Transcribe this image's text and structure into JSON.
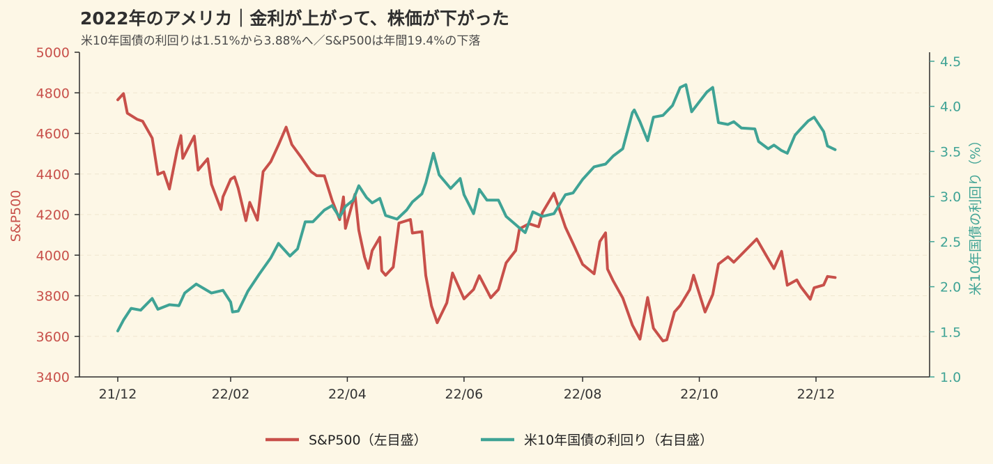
{
  "chart_data": {
    "type": "line",
    "title": "2022年のアメリカ｜金利が上がって、株価が下がった",
    "subtitle": "米10年国債の利回りは1.51%から3.88%へ／S&P500は年間19.4%の下落",
    "x_ticks": [
      "21/12",
      "22/02",
      "22/04",
      "22/06",
      "22/08",
      "22/10",
      "22/12"
    ],
    "x_tick_dates": [
      "2021-12-31",
      "2022-02-28",
      "2022-04-30",
      "2022-06-30",
      "2022-08-31",
      "2022-10-31",
      "2022-12-31"
    ],
    "left_axis": {
      "label": "S&P500",
      "ylim": [
        3400,
        5000
      ],
      "ticks": [
        3400,
        3600,
        3800,
        4000,
        4200,
        4400,
        4600,
        4800,
        5000
      ]
    },
    "right_axis": {
      "label": "米10年国債の利回り（%）",
      "ylim": [
        1.0,
        4.6
      ],
      "ticks": [
        "1.0",
        "1.5",
        "2.0",
        "2.5",
        "3.0",
        "3.5",
        "4.0",
        "4.5"
      ]
    },
    "grid": "horizontal dashed",
    "legend_position": "bottom-center",
    "series": [
      {
        "name": "S&P500（左目盛）",
        "axis": "left",
        "color": "#c8504a",
        "points": [
          [
            "2021-12-31",
            4766
          ],
          [
            "2022-01-03",
            4796
          ],
          [
            "2022-01-05",
            4700
          ],
          [
            "2022-01-10",
            4670
          ],
          [
            "2022-01-13",
            4660
          ],
          [
            "2022-01-18",
            4577
          ],
          [
            "2022-01-21",
            4398
          ],
          [
            "2022-01-24",
            4410
          ],
          [
            "2022-01-27",
            4326
          ],
          [
            "2022-01-31",
            4516
          ],
          [
            "2022-02-02",
            4589
          ],
          [
            "2022-02-03",
            4477
          ],
          [
            "2022-02-09",
            4587
          ],
          [
            "2022-02-11",
            4419
          ],
          [
            "2022-02-16",
            4475
          ],
          [
            "2022-02-18",
            4349
          ],
          [
            "2022-02-23",
            4225
          ],
          [
            "2022-02-24",
            4288
          ],
          [
            "2022-02-28",
            4374
          ],
          [
            "2022-03-02",
            4386
          ],
          [
            "2022-03-04",
            4329
          ],
          [
            "2022-03-08",
            4170
          ],
          [
            "2022-03-10",
            4260
          ],
          [
            "2022-03-14",
            4173
          ],
          [
            "2022-03-17",
            4412
          ],
          [
            "2022-03-21",
            4461
          ],
          [
            "2022-03-25",
            4543
          ],
          [
            "2022-03-29",
            4631
          ],
          [
            "2022-04-01",
            4545
          ],
          [
            "2022-04-06",
            4481
          ],
          [
            "2022-04-11",
            4412
          ],
          [
            "2022-04-14",
            4392
          ],
          [
            "2022-04-18",
            4391
          ],
          [
            "2022-04-22",
            4271
          ],
          [
            "2022-04-26",
            4175
          ],
          [
            "2022-04-28",
            4287
          ],
          [
            "2022-04-29",
            4132
          ],
          [
            "2022-05-04",
            4300
          ],
          [
            "2022-05-06",
            4123
          ],
          [
            "2022-05-09",
            3991
          ],
          [
            "2022-05-11",
            3935
          ],
          [
            "2022-05-13",
            4023
          ],
          [
            "2022-05-17",
            4088
          ],
          [
            "2022-05-18",
            3923
          ],
          [
            "2022-05-20",
            3901
          ],
          [
            "2022-05-24",
            3941
          ],
          [
            "2022-05-27",
            4158
          ],
          [
            "2022-06-02",
            4176
          ],
          [
            "2022-06-03",
            4109
          ],
          [
            "2022-06-08",
            4116
          ],
          [
            "2022-06-10",
            3900
          ],
          [
            "2022-06-13",
            3750
          ],
          [
            "2022-06-16",
            3667
          ],
          [
            "2022-06-21",
            3765
          ],
          [
            "2022-06-24",
            3912
          ],
          [
            "2022-06-30",
            3785
          ],
          [
            "2022-07-05",
            3831
          ],
          [
            "2022-07-08",
            3899
          ],
          [
            "2022-07-14",
            3790
          ],
          [
            "2022-07-18",
            3831
          ],
          [
            "2022-07-22",
            3962
          ],
          [
            "2022-07-27",
            4023
          ],
          [
            "2022-07-29",
            4130
          ],
          [
            "2022-08-03",
            4155
          ],
          [
            "2022-08-08",
            4140
          ],
          [
            "2022-08-10",
            4210
          ],
          [
            "2022-08-16",
            4305
          ],
          [
            "2022-08-22",
            4138
          ],
          [
            "2022-08-26",
            4057
          ],
          [
            "2022-08-31",
            3955
          ],
          [
            "2022-09-06",
            3908
          ],
          [
            "2022-09-09",
            4067
          ],
          [
            "2022-09-12",
            4110
          ],
          [
            "2022-09-13",
            3932
          ],
          [
            "2022-09-16",
            3873
          ],
          [
            "2022-09-21",
            3789
          ],
          [
            "2022-09-26",
            3655
          ],
          [
            "2022-09-30",
            3586
          ],
          [
            "2022-10-04",
            3791
          ],
          [
            "2022-10-07",
            3640
          ],
          [
            "2022-10-12",
            3577
          ],
          [
            "2022-10-14",
            3583
          ],
          [
            "2022-10-18",
            3720
          ],
          [
            "2022-10-21",
            3752
          ],
          [
            "2022-10-26",
            3830
          ],
          [
            "2022-10-28",
            3901
          ],
          [
            "2022-11-03",
            3720
          ],
          [
            "2022-11-07",
            3806
          ],
          [
            "2022-11-10",
            3956
          ],
          [
            "2022-11-15",
            3992
          ],
          [
            "2022-11-18",
            3965
          ],
          [
            "2022-11-22",
            4003
          ],
          [
            "2022-11-30",
            4080
          ],
          [
            "2022-12-05",
            3998
          ],
          [
            "2022-12-09",
            3934
          ],
          [
            "2022-12-13",
            4019
          ],
          [
            "2022-12-16",
            3852
          ],
          [
            "2022-12-21",
            3878
          ],
          [
            "2022-12-23",
            3845
          ],
          [
            "2022-12-28",
            3783
          ],
          [
            "2022-12-30",
            3839
          ],
          [
            "2023-01-04",
            3853
          ],
          [
            "2023-01-06",
            3895
          ],
          [
            "2023-01-10",
            3890
          ]
        ]
      },
      {
        "name": "米10年国債の利回り（右目盛）",
        "axis": "right",
        "color": "#3fa395",
        "points": [
          [
            "2021-12-31",
            1.51
          ],
          [
            "2022-01-03",
            1.63
          ],
          [
            "2022-01-07",
            1.76
          ],
          [
            "2022-01-12",
            1.74
          ],
          [
            "2022-01-18",
            1.87
          ],
          [
            "2022-01-21",
            1.75
          ],
          [
            "2022-01-27",
            1.8
          ],
          [
            "2022-02-01",
            1.79
          ],
          [
            "2022-02-04",
            1.93
          ],
          [
            "2022-02-10",
            2.03
          ],
          [
            "2022-02-14",
            1.98
          ],
          [
            "2022-02-18",
            1.93
          ],
          [
            "2022-02-24",
            1.96
          ],
          [
            "2022-02-28",
            1.83
          ],
          [
            "2022-03-01",
            1.72
          ],
          [
            "2022-03-04",
            1.73
          ],
          [
            "2022-03-09",
            1.95
          ],
          [
            "2022-03-15",
            2.14
          ],
          [
            "2022-03-21",
            2.32
          ],
          [
            "2022-03-25",
            2.48
          ],
          [
            "2022-03-31",
            2.34
          ],
          [
            "2022-04-04",
            2.42
          ],
          [
            "2022-04-08",
            2.72
          ],
          [
            "2022-04-12",
            2.72
          ],
          [
            "2022-04-18",
            2.85
          ],
          [
            "2022-04-22",
            2.9
          ],
          [
            "2022-04-26",
            2.77
          ],
          [
            "2022-04-29",
            2.89
          ],
          [
            "2022-05-03",
            2.96
          ],
          [
            "2022-05-06",
            3.12
          ],
          [
            "2022-05-10",
            2.99
          ],
          [
            "2022-05-13",
            2.93
          ],
          [
            "2022-05-17",
            2.98
          ],
          [
            "2022-05-20",
            2.79
          ],
          [
            "2022-05-26",
            2.75
          ],
          [
            "2022-05-31",
            2.85
          ],
          [
            "2022-06-03",
            2.94
          ],
          [
            "2022-06-08",
            3.03
          ],
          [
            "2022-06-10",
            3.15
          ],
          [
            "2022-06-14",
            3.48
          ],
          [
            "2022-06-17",
            3.24
          ],
          [
            "2022-06-23",
            3.09
          ],
          [
            "2022-06-28",
            3.2
          ],
          [
            "2022-06-30",
            3.02
          ],
          [
            "2022-07-05",
            2.81
          ],
          [
            "2022-07-08",
            3.08
          ],
          [
            "2022-07-12",
            2.96
          ],
          [
            "2022-07-18",
            2.96
          ],
          [
            "2022-07-22",
            2.78
          ],
          [
            "2022-07-28",
            2.67
          ],
          [
            "2022-08-01",
            2.6
          ],
          [
            "2022-08-05",
            2.83
          ],
          [
            "2022-08-10",
            2.78
          ],
          [
            "2022-08-16",
            2.81
          ],
          [
            "2022-08-22",
            3.02
          ],
          [
            "2022-08-26",
            3.04
          ],
          [
            "2022-08-31",
            3.19
          ],
          [
            "2022-09-06",
            3.33
          ],
          [
            "2022-09-12",
            3.36
          ],
          [
            "2022-09-16",
            3.45
          ],
          [
            "2022-09-21",
            3.53
          ],
          [
            "2022-09-26",
            3.93
          ],
          [
            "2022-09-27",
            3.96
          ],
          [
            "2022-09-30",
            3.83
          ],
          [
            "2022-10-04",
            3.62
          ],
          [
            "2022-10-07",
            3.88
          ],
          [
            "2022-10-12",
            3.9
          ],
          [
            "2022-10-17",
            4.01
          ],
          [
            "2022-10-21",
            4.21
          ],
          [
            "2022-10-24",
            4.24
          ],
          [
            "2022-10-27",
            3.94
          ],
          [
            "2022-10-31",
            4.05
          ],
          [
            "2022-11-04",
            4.16
          ],
          [
            "2022-11-07",
            4.21
          ],
          [
            "2022-11-10",
            3.82
          ],
          [
            "2022-11-15",
            3.8
          ],
          [
            "2022-11-18",
            3.83
          ],
          [
            "2022-11-22",
            3.76
          ],
          [
            "2022-11-29",
            3.75
          ],
          [
            "2022-12-01",
            3.61
          ],
          [
            "2022-12-06",
            3.53
          ],
          [
            "2022-12-09",
            3.57
          ],
          [
            "2022-12-13",
            3.51
          ],
          [
            "2022-12-16",
            3.48
          ],
          [
            "2022-12-20",
            3.68
          ],
          [
            "2022-12-23",
            3.75
          ],
          [
            "2022-12-27",
            3.84
          ],
          [
            "2022-12-30",
            3.88
          ],
          [
            "2023-01-04",
            3.72
          ],
          [
            "2023-01-06",
            3.56
          ],
          [
            "2023-01-10",
            3.52
          ]
        ]
      }
    ]
  }
}
